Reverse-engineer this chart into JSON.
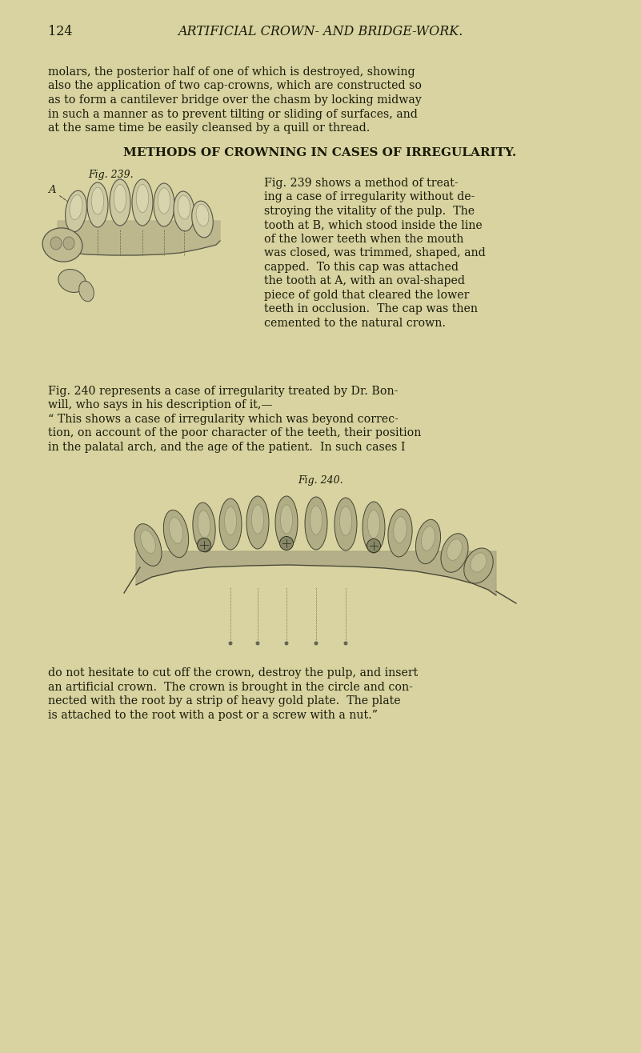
{
  "bg_color": "#d8d3a0",
  "page_width": 8.01,
  "page_height": 13.16,
  "text_color": "#1a1a0a",
  "page_number": "124",
  "page_header": "ARTIFICIAL CROWN- AND BRIDGE-WORK.",
  "intro_line1": "molars, the posterior half of one of which is destroyed, showing",
  "intro_line2": "also the application of two cap-crowns, which are constructed so",
  "intro_line3": "as to form a cantilever bridge over the chasm by locking midway",
  "intro_line4": "in such a manner as to prevent tilting or sliding of surfaces, and",
  "intro_line5": "at the same time be easily cleansed by a quill or thread.",
  "section_header": "METHODS OF CROWNING IN CASES OF IRREGULARITY.",
  "fig239_caption": "Fig. 239.",
  "fig239_line1": "Fig. 239 shows a method of treat-",
  "fig239_line2": "ing a case of irregularity without de-",
  "fig239_line3": "stroying the vitality of the pulp.  The",
  "fig239_line4": "tooth at B, which stood inside the line",
  "fig239_line5": "of the lower teeth when the mouth",
  "fig239_line6": "was closed, was trimmed, shaped, and",
  "fig239_line7": "capped.  To this cap was attached",
  "fig239_line8": "the tooth at A, with an oval-shaped",
  "fig239_line9": "piece of gold that cleared the lower",
  "fig239_line10": "teeth in occlusion.  The cap was then",
  "fig239_line11": "cemented to the natural crown.",
  "mid_line1": "Fig. 240 represents a case of irregularity treated by Dr. Bon-",
  "mid_line2": "will, who says in his description of it,—",
  "mid_line3": "“ This shows a case of irregularity which was beyond correc-",
  "mid_line4": "tion, on account of the poor character of the teeth, their position",
  "mid_line5": "in the palatal arch, and the age of the patient.  In such cases I",
  "fig240_caption": "Fig. 240.",
  "bot_line1": "do not hesitate to cut off the crown, destroy the pulp, and insert",
  "bot_line2": "an artificial crown.  The crown is brought in the circle and con-",
  "bot_line3": "nected with the root by a strip of heavy gold plate.  The plate",
  "bot_line4": "is attached to the root with a post or a screw with a nut.”"
}
